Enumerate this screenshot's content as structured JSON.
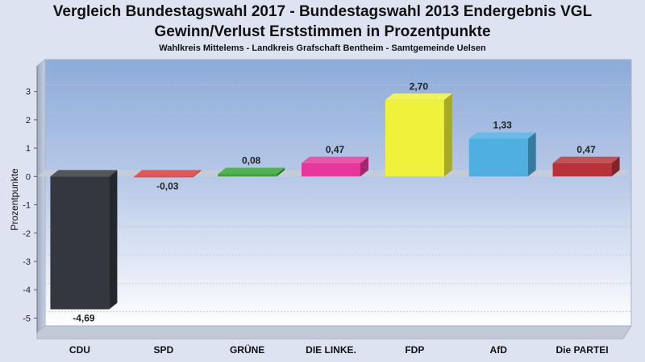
{
  "chart_data": {
    "type": "bar",
    "title": "Vergleich Bundestagswahl 2017 - Bundestagswahl 2013 Endergebnis VGL",
    "title_line2": "Gewinn/Verlust Erststimmen in Prozentpunkte",
    "subtitle": "Wahlkreis Mittelems - Landkreis Grafschaft Bentheim - Samtgemeinde Uelsen",
    "xlabel": "",
    "ylabel": "Prozentpunkte",
    "ylim": [
      -5.5,
      3.9
    ],
    "yticks": [
      3,
      2,
      1,
      0,
      -1,
      -2,
      -3,
      -4,
      -5
    ],
    "grid": true,
    "legend": "none",
    "categories": [
      "CDU",
      "SPD",
      "GRÜNE",
      "DIE LINKE.",
      "FDP",
      "AfD",
      "Die PARTEI"
    ],
    "values": [
      -4.69,
      -0.03,
      0.08,
      0.47,
      2.7,
      1.33,
      0.47
    ],
    "value_labels": [
      "-4,69",
      "-0,03",
      "0,08",
      "0,47",
      "2,70",
      "1,33",
      "0,47"
    ],
    "colors": [
      "#34383e",
      "#d83a37",
      "#35a335",
      "#e8369c",
      "#eef23a",
      "#4eafe0",
      "#b83238"
    ]
  }
}
